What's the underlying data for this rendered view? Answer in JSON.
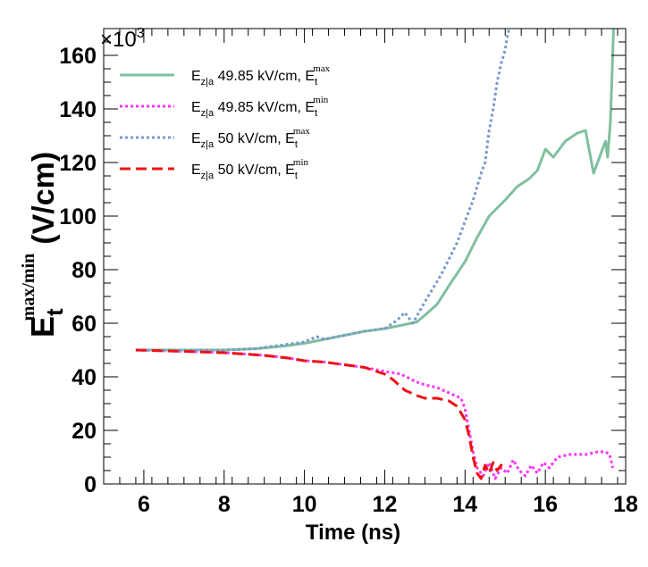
{
  "chart_data": {
    "type": "line",
    "title": "",
    "xlabel": "Time (ns)",
    "ylabel": {
      "main": "E",
      "sub": "t",
      "sup": "max/min",
      "unit": "(V/cm)"
    },
    "y_multiplier": {
      "prefix": "×10",
      "exponent": "3"
    },
    "xlim": [
      5,
      18
    ],
    "ylim": [
      0,
      170
    ],
    "x_ticks": [
      6,
      8,
      10,
      12,
      14,
      16,
      18
    ],
    "y_ticks": [
      0,
      20,
      40,
      60,
      80,
      100,
      120,
      140,
      160
    ],
    "legend_position": "top-left",
    "series": [
      {
        "name": "Ez|a 49.85 kV/cm, Et max",
        "legend": {
          "E": "E",
          "sub": "z|a",
          "value": " 49.85 kV/cm, E",
          "sub2": "t",
          "sup2": "max"
        },
        "color": "#7fbf9f",
        "style": "solid",
        "x": [
          5.8,
          7.0,
          8.0,
          8.8,
          9.5,
          10.0,
          10.5,
          11.0,
          11.5,
          12.0,
          12.5,
          12.8,
          13.0,
          13.3,
          13.6,
          14.0,
          14.3,
          14.6,
          15.0,
          15.3,
          15.6,
          15.8,
          16.0,
          16.2,
          16.5,
          16.8,
          17.0,
          17.2,
          17.4,
          17.5,
          17.55,
          17.62,
          17.66,
          17.7
        ],
        "y": [
          50,
          50,
          50,
          50.5,
          51.5,
          52.5,
          54,
          55.5,
          57,
          58,
          59.5,
          60.5,
          63,
          67,
          74,
          83,
          92,
          100,
          106,
          111,
          114,
          117,
          125,
          122,
          128,
          131,
          132,
          116,
          124,
          128,
          122,
          135,
          152,
          170
        ]
      },
      {
        "name": "Ez|a 49.85 kV/cm, Et min",
        "legend": {
          "E": "E",
          "sub": "z|a",
          "value": " 49.85 kV/cm, E",
          "sub2": "t",
          "sup2": "min"
        },
        "color": "#ff33ff",
        "style": "dotted",
        "x": [
          5.8,
          7.0,
          8.0,
          9.0,
          9.6,
          10.0,
          10.5,
          11.0,
          11.5,
          12.0,
          12.4,
          12.8,
          13.0,
          13.3,
          13.6,
          13.9,
          14.0,
          14.1,
          14.2,
          14.3,
          14.45,
          14.6,
          14.75,
          14.9,
          15.05,
          15.2,
          15.35,
          15.5,
          15.65,
          15.8,
          15.95,
          16.1,
          16.3,
          16.6,
          17.0,
          17.3,
          17.5,
          17.6,
          17.65,
          17.68
        ],
        "y": [
          50,
          49.5,
          49,
          48,
          47,
          46,
          45.5,
          44.5,
          43.5,
          42,
          41,
          38,
          37,
          36,
          34,
          32,
          28,
          20,
          12,
          6,
          3,
          8,
          2,
          6,
          4,
          9,
          5,
          3,
          7,
          4,
          8,
          6,
          10,
          11,
          11,
          12,
          12,
          11,
          8,
          6
        ]
      },
      {
        "name": "Ez|a 50 kV/cm, Et max",
        "legend": {
          "E": "E",
          "sub": "z|a",
          "value": " 50 kV/cm, E",
          "sub2": "t",
          "sup2": "max"
        },
        "color": "#7799cc",
        "style": "dotted",
        "x": [
          5.8,
          7.0,
          8.0,
          8.8,
          9.5,
          10.0,
          10.3,
          10.5,
          11.0,
          11.5,
          12.0,
          12.3,
          12.5,
          12.7,
          13.0,
          13.4,
          13.8,
          14.0,
          14.2,
          14.4,
          14.5,
          14.6,
          14.7,
          14.8,
          14.9,
          15.0,
          15.05,
          15.1
        ],
        "y": [
          50,
          50,
          50,
          50.5,
          52,
          53,
          55,
          54,
          55.5,
          57,
          58,
          61,
          64,
          60,
          68,
          78,
          90,
          98,
          106,
          116,
          120,
          132,
          140,
          150,
          157,
          162,
          167,
          170
        ]
      },
      {
        "name": "Ez|a 50 kV/cm, Et min",
        "legend": {
          "E": "E",
          "sub": "z|a",
          "value": " 50 kV/cm, E",
          "sub2": "t",
          "sup2": "min"
        },
        "color": "#ee1111",
        "style": "dashed",
        "x": [
          5.8,
          7.0,
          8.0,
          9.0,
          9.6,
          10.0,
          10.5,
          11.0,
          11.5,
          12.0,
          12.2,
          12.5,
          12.8,
          13.0,
          13.3,
          13.6,
          13.8,
          14.0,
          14.1,
          14.2,
          14.3,
          14.4,
          14.5,
          14.6,
          14.7,
          14.8,
          14.9,
          15.0
        ],
        "y": [
          50,
          49.5,
          49,
          48,
          47,
          46,
          45.5,
          44.5,
          43.5,
          41,
          39,
          35,
          33,
          32,
          32,
          31,
          29,
          24,
          18,
          10,
          4,
          2,
          7,
          4,
          8,
          5,
          7,
          6
        ]
      }
    ]
  }
}
